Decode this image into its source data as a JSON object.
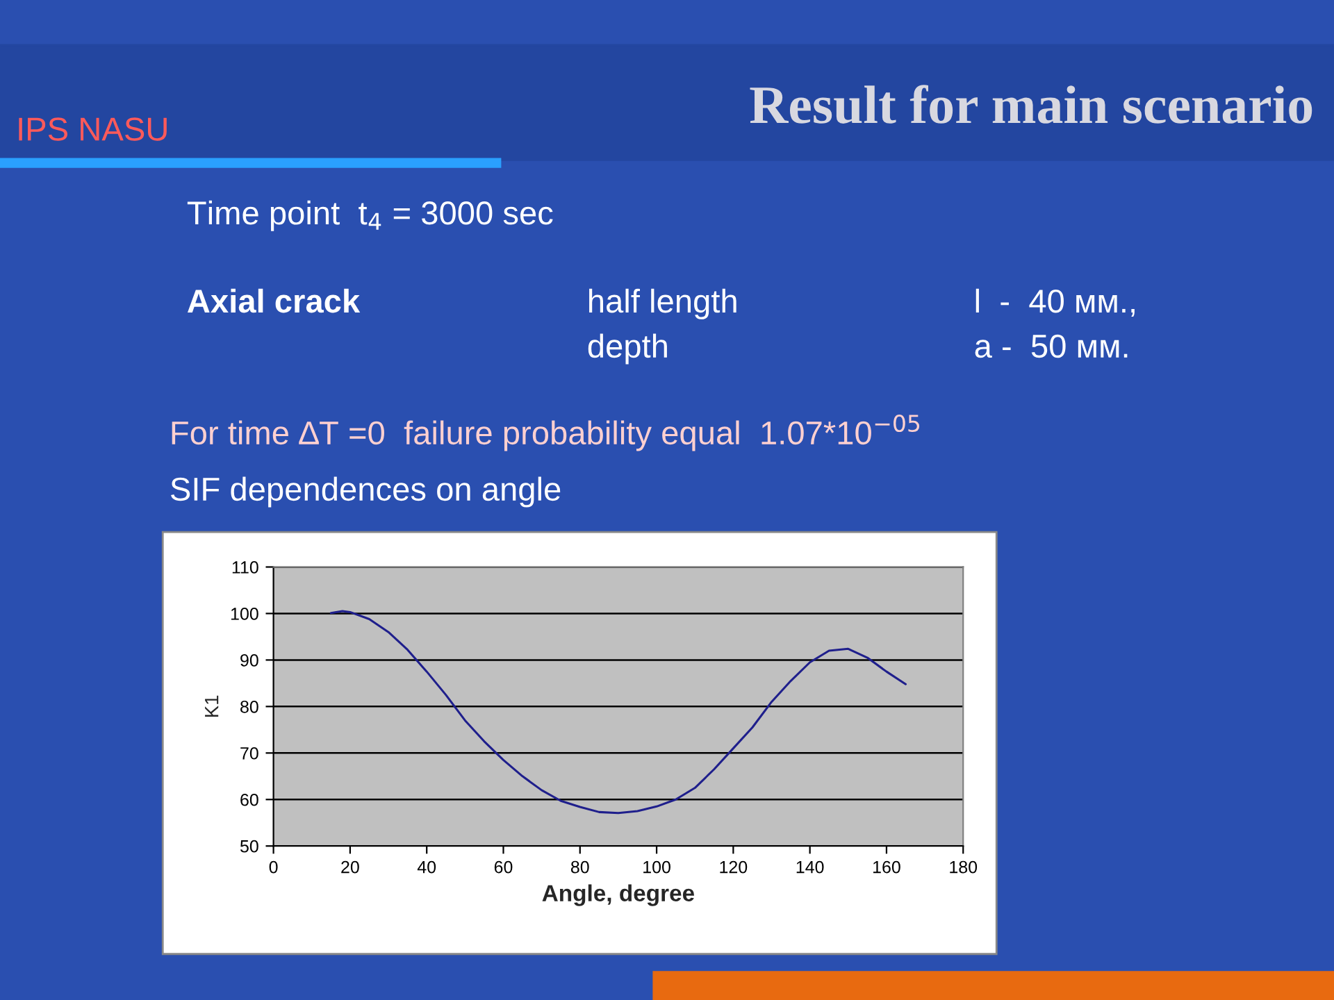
{
  "chart_data": {
    "type": "line",
    "title": "Result for main scenario",
    "xlabel": "Angle, degree",
    "ylabel": "K1",
    "annotations": [
      "IPS NASU",
      "Time point  t$_{4}$ = 3000 sec",
      "Axial crack",
      "half length",
      "l  -  40 мм.,",
      "depth",
      "a -  50 мм.",
      "For time ∆T =0  failure probability equal  1.07*10$^{−05}$",
      "SIF dependences on angle"
    ],
    "x": [
      15,
      18,
      20,
      25,
      30,
      35,
      40,
      45,
      50,
      55,
      60,
      65,
      70,
      75,
      80,
      85,
      90,
      95,
      100,
      105,
      110,
      115,
      120,
      125,
      130,
      135,
      140,
      145,
      150,
      155,
      160,
      165
    ],
    "series": [
      {
        "color": "#1f1f8c",
        "values": [
          100.1,
          100.5,
          100.3,
          98.8,
          96,
          92.2,
          87.5,
          82.5,
          77,
          72.5,
          68.5,
          65,
          62,
          59.7,
          58.4,
          57.3,
          57.1,
          57.5,
          58.5,
          60,
          62.5,
          66.5,
          71,
          75.5,
          81,
          85.5,
          89.5,
          92,
          92.4,
          90.5,
          87.5,
          84.8
        ]
      }
    ],
    "xlim": [
      0,
      180
    ],
    "xticks": [
      0,
      20,
      40,
      60,
      80,
      100,
      120,
      140,
      160,
      180
    ],
    "ylim": [
      50,
      110
    ],
    "yticks": [
      50,
      60,
      70,
      80,
      90,
      100,
      110
    ],
    "grid": "y",
    "marker": "none",
    "line_style": "solid",
    "legend": false
  }
}
